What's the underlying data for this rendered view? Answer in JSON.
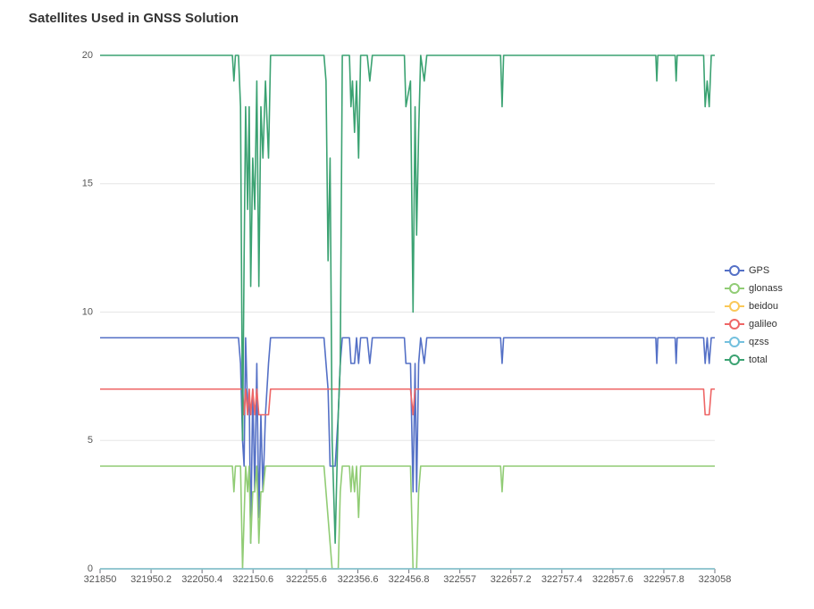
{
  "chart_data": {
    "type": "line",
    "title": "Satellites Used in GNSS Solution",
    "x": [
      321850,
      322110,
      322113,
      322116,
      322122,
      322126,
      322130,
      322133,
      322136,
      322140,
      322143,
      322146,
      322150,
      322154,
      322158,
      322162,
      322166,
      322170,
      322175,
      322181,
      322185,
      322290,
      322294,
      322298,
      322302,
      322306,
      322312,
      322318,
      322322,
      322326,
      322340,
      322343,
      322346,
      322350,
      322354,
      322358,
      322362,
      322375,
      322380,
      322385,
      322448,
      322451,
      322460,
      322465,
      322469,
      322472,
      322476,
      322480,
      322487,
      322492,
      322637,
      322640,
      322643,
      322942,
      322944,
      322946,
      322980,
      322982,
      322984,
      323036,
      323039,
      323043,
      323047,
      323051,
      323058
    ],
    "series": [
      {
        "name": "GPS",
        "color": "#5470c6",
        "values": [
          9,
          9,
          9,
          9,
          9,
          8,
          5,
          4,
          9,
          6,
          7,
          1,
          7,
          3,
          8,
          2,
          6,
          3,
          6,
          8,
          9,
          9,
          8,
          7,
          4,
          4,
          4,
          6,
          8,
          9,
          9,
          8,
          8,
          8,
          9,
          8,
          9,
          9,
          8,
          9,
          9,
          8,
          8,
          3,
          8,
          3,
          8,
          9,
          8,
          9,
          9,
          8,
          9,
          9,
          8,
          9,
          9,
          8,
          9,
          9,
          8,
          9,
          8,
          9,
          9
        ]
      },
      {
        "name": "glonass",
        "color": "#91cc75",
        "values": [
          4,
          4,
          3,
          4,
          4,
          4,
          0,
          2,
          4,
          3,
          4,
          1,
          3,
          3,
          4,
          1,
          3,
          3,
          4,
          4,
          4,
          4,
          3,
          2,
          1,
          0,
          0,
          0,
          3,
          4,
          4,
          3,
          4,
          3,
          4,
          2,
          4,
          4,
          4,
          4,
          4,
          4,
          4,
          0,
          0,
          0,
          3,
          4,
          4,
          4,
          4,
          3,
          4,
          4,
          4,
          4,
          4,
          4,
          4,
          4,
          4,
          4,
          4,
          4,
          4
        ]
      },
      {
        "name": "beidou",
        "color": "#fac858",
        "values": [
          0,
          0,
          0,
          0,
          0,
          0,
          0,
          0,
          0,
          0,
          0,
          0,
          0,
          0,
          0,
          0,
          0,
          0,
          0,
          0,
          0,
          0,
          0,
          0,
          0,
          0,
          0,
          0,
          0,
          0,
          0,
          0,
          0,
          0,
          0,
          0,
          0,
          0,
          0,
          0,
          0,
          0,
          0,
          0,
          0,
          0,
          0,
          0,
          0,
          0,
          0,
          0,
          0,
          0,
          0,
          0,
          0,
          0,
          0,
          0,
          0,
          0,
          0,
          0,
          0
        ]
      },
      {
        "name": "galileo",
        "color": "#ee6666",
        "values": [
          7,
          7,
          7,
          7,
          7,
          7,
          7,
          6,
          7,
          6,
          7,
          6,
          7,
          6,
          7,
          6,
          6,
          6,
          6,
          6,
          7,
          7,
          7,
          7,
          7,
          7,
          7,
          7,
          7,
          7,
          7,
          7,
          7,
          7,
          7,
          7,
          7,
          7,
          7,
          7,
          7,
          7,
          7,
          6,
          7,
          7,
          7,
          7,
          7,
          7,
          7,
          7,
          7,
          7,
          7,
          7,
          7,
          7,
          7,
          7,
          6,
          6,
          6,
          7,
          7
        ]
      },
      {
        "name": "qzss",
        "color": "#73c0de",
        "values": [
          0,
          0,
          0,
          0,
          0,
          0,
          0,
          0,
          0,
          0,
          0,
          0,
          0,
          0,
          0,
          0,
          0,
          0,
          0,
          0,
          0,
          0,
          0,
          0,
          0,
          0,
          0,
          0,
          0,
          0,
          0,
          0,
          0,
          0,
          0,
          0,
          0,
          0,
          0,
          0,
          0,
          0,
          0,
          0,
          0,
          0,
          0,
          0,
          0,
          0,
          0,
          0,
          0,
          0,
          0,
          0,
          0,
          0,
          0,
          0,
          0,
          0,
          0,
          0,
          0
        ]
      },
      {
        "name": "total",
        "color": "#3ba272",
        "values": [
          20,
          20,
          19,
          20,
          20,
          18,
          5,
          12,
          18,
          14,
          18,
          11,
          16,
          14,
          19,
          11,
          18,
          16,
          19,
          16,
          20,
          20,
          19,
          12,
          16,
          5,
          1,
          6,
          8,
          20,
          20,
          18,
          19,
          17,
          19,
          16,
          20,
          20,
          19,
          20,
          20,
          18,
          19,
          10,
          18,
          13,
          17,
          20,
          19,
          20,
          20,
          18,
          20,
          20,
          19,
          20,
          20,
          19,
          20,
          20,
          18,
          19,
          18,
          20,
          20
        ]
      }
    ],
    "xlim": [
      321850,
      323058
    ],
    "xticks": [
      321850,
      321950.2,
      322050.4,
      322150.6,
      322255.6,
      322356.6,
      322456.8,
      322557,
      322657.2,
      322757.4,
      322857.6,
      322957.8,
      323058
    ],
    "ylim": [
      0,
      20
    ],
    "yticks": [
      0,
      5,
      10,
      15,
      20
    ],
    "grid": true,
    "legend": "right"
  }
}
